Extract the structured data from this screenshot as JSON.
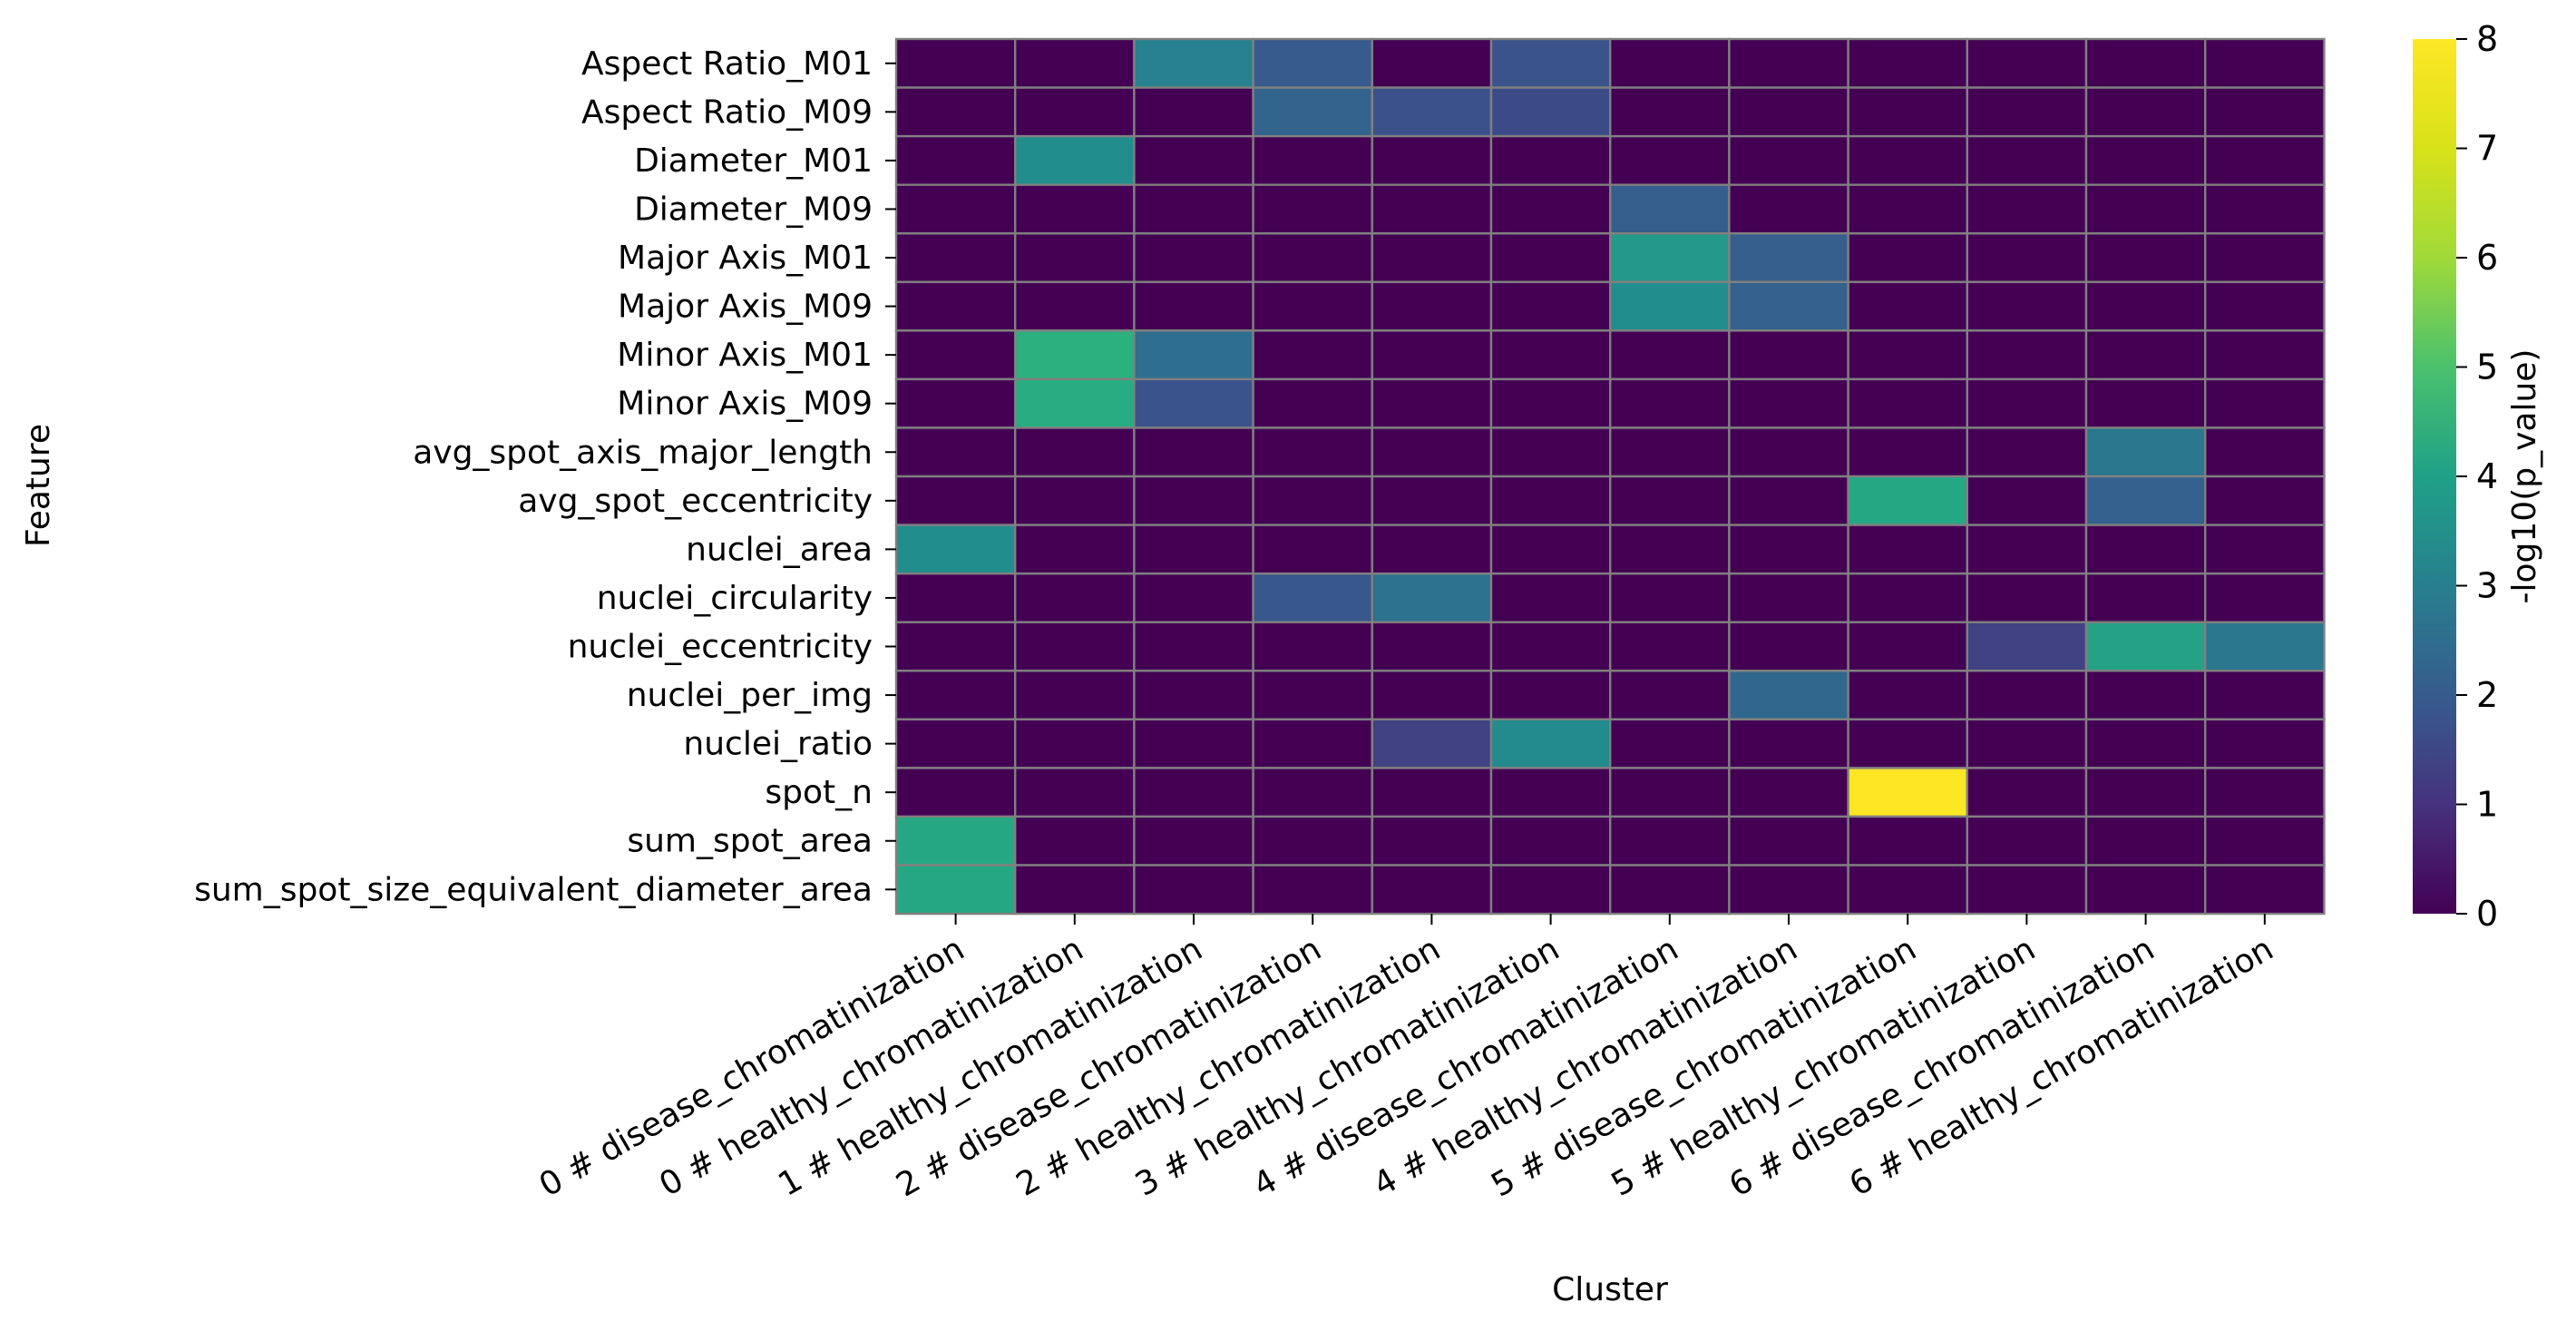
{
  "chart_data": {
    "type": "heatmap",
    "title": "",
    "xlabel": "Cluster",
    "ylabel": "Feature",
    "colorbar_label": "-log10(p_value)",
    "colorbar_ticks": [
      "0",
      "1",
      "2",
      "3",
      "4",
      "5",
      "6",
      "7",
      "8"
    ],
    "vmin": 0,
    "vmax": 8,
    "colormap": "viridis",
    "grid_color": "#808080",
    "columns": [
      "0 # disease_chromatinization",
      "0 # healthy_chromatinization",
      "1 # healthy_chromatinization",
      "2 # disease_chromatinization",
      "2 # healthy_chromatinization",
      "3 # healthy_chromatinization",
      "4 # disease_chromatinization",
      "4 # healthy_chromatinization",
      "5 # disease_chromatinization",
      "5 # healthy_chromatinization",
      "6 # disease_chromatinization",
      "6 # healthy_chromatinization"
    ],
    "rows": [
      "Aspect Ratio_M01",
      "Aspect Ratio_M09",
      "Diameter_M01",
      "Diameter_M09",
      "Major Axis_M01",
      "Major Axis_M09",
      "Minor Axis_M01",
      "Minor Axis_M09",
      "avg_spot_axis_major_length",
      "avg_spot_eccentricity",
      "nuclei_area",
      "nuclei_circularity",
      "nuclei_eccentricity",
      "nuclei_per_img",
      "nuclei_ratio",
      "spot_n",
      "sum_spot_area",
      "sum_spot_size_equivalent_diameter_area"
    ],
    "values": [
      [
        0,
        0,
        3.5,
        2.3,
        0,
        2.1,
        0,
        0,
        0,
        0,
        0,
        0
      ],
      [
        0,
        0,
        0,
        2.6,
        2.0,
        1.8,
        0,
        0,
        0,
        0,
        0,
        0
      ],
      [
        0,
        3.9,
        0,
        0,
        0,
        0,
        0,
        0,
        0,
        0,
        0,
        0
      ],
      [
        0,
        0,
        0,
        0,
        0,
        0,
        2.4,
        0,
        0,
        0,
        0,
        0
      ],
      [
        0,
        0,
        0,
        0,
        0,
        0,
        4.3,
        2.4,
        0,
        0,
        0,
        0
      ],
      [
        0,
        0,
        0,
        0,
        0,
        0,
        3.9,
        2.5,
        0,
        0,
        0,
        0
      ],
      [
        0,
        5.1,
        2.9,
        0,
        0,
        0,
        0,
        0,
        0,
        0,
        0,
        0
      ],
      [
        0,
        5.0,
        2.1,
        0,
        0,
        0,
        0,
        0,
        0,
        0,
        0,
        0
      ],
      [
        0,
        0,
        0,
        0,
        0,
        0,
        0,
        0,
        0,
        0,
        3.2,
        0
      ],
      [
        0,
        0,
        0,
        0,
        0,
        0,
        0,
        0,
        4.8,
        0,
        2.5,
        0
      ],
      [
        3.9,
        0,
        0,
        0,
        0,
        0,
        0,
        0,
        0,
        0,
        0,
        0
      ],
      [
        0,
        0,
        0,
        2.2,
        3.0,
        0,
        0,
        0,
        0,
        0,
        0,
        0
      ],
      [
        0,
        0,
        0,
        0,
        0,
        0,
        0,
        0,
        0,
        1.6,
        4.6,
        3.2
      ],
      [
        0,
        0,
        0,
        0,
        0,
        0,
        0,
        2.7,
        0,
        0,
        0,
        0
      ],
      [
        0,
        0,
        0,
        0,
        1.6,
        3.8,
        0,
        0,
        0,
        0,
        0,
        0
      ],
      [
        0,
        0,
        0,
        0,
        0,
        0,
        0,
        0,
        8.0,
        0,
        0,
        0
      ],
      [
        4.8,
        0,
        0,
        0,
        0,
        0,
        0,
        0,
        0,
        0,
        0,
        0
      ],
      [
        4.8,
        0,
        0,
        0,
        0,
        0,
        0,
        0,
        0,
        0,
        0,
        0
      ]
    ]
  }
}
